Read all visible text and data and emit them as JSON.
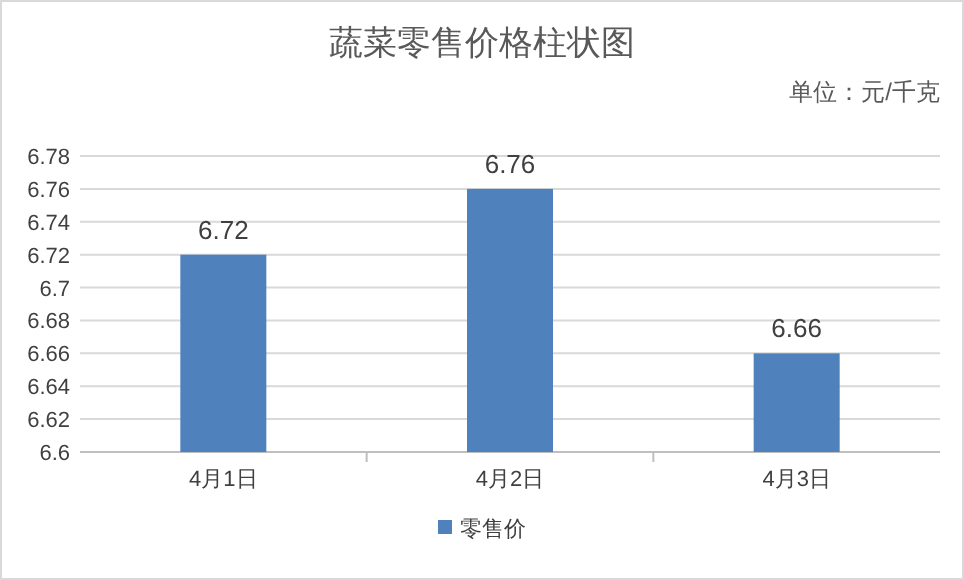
{
  "chart_data": {
    "type": "bar",
    "title": "蔬菜零售价格柱状图",
    "annotations": [
      "单位：元/千克"
    ],
    "categories": [
      "4月1日",
      "4月2日",
      "4月3日"
    ],
    "series": [
      {
        "name": "零售价",
        "color": "#4f81bd",
        "values": [
          6.72,
          6.76,
          6.66
        ]
      }
    ],
    "ylim": [
      6.6,
      6.78
    ],
    "yticks": [
      6.6,
      6.62,
      6.64,
      6.66,
      6.68,
      6.7,
      6.72,
      6.74,
      6.76,
      6.78
    ],
    "grid": "y",
    "legend": "bottom",
    "data_labels": true
  }
}
